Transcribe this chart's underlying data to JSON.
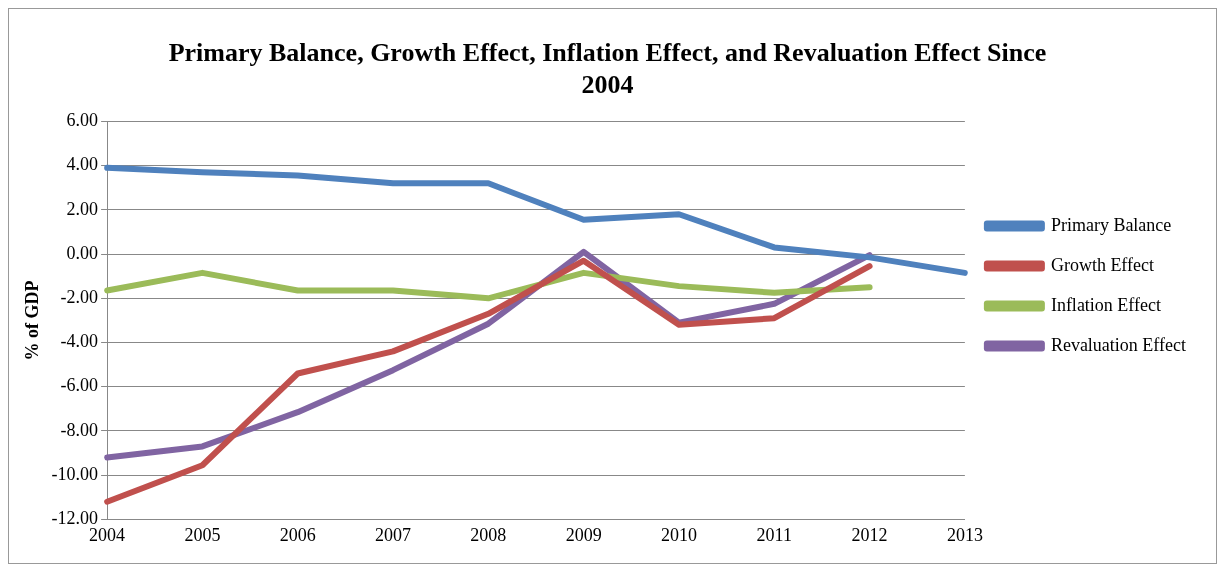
{
  "chart_data": {
    "type": "line",
    "title": "Primary Balance, Growth Effect, Inflation Effect, and Revaluation Effect Since 2004",
    "ylabel": "% of GDP",
    "categories": [
      "2004",
      "2005",
      "2006",
      "2007",
      "2008",
      "2009",
      "2010",
      "2011",
      "2012",
      "2013"
    ],
    "series": [
      {
        "name": "Primary Balance",
        "color": "#4f81bd",
        "values": [
          3.9,
          3.7,
          3.55,
          3.2,
          3.2,
          1.55,
          1.8,
          0.3,
          -0.15,
          -0.85
        ]
      },
      {
        "name": "Growth Effect",
        "color": "#c0504d",
        "values": [
          -11.2,
          -9.55,
          -5.4,
          -4.4,
          -2.7,
          -0.3,
          -3.2,
          -2.9,
          -0.55,
          null
        ]
      },
      {
        "name": "Inflation Effect",
        "color": "#9bbb59",
        "values": [
          -1.65,
          -0.85,
          -1.65,
          -1.65,
          -2.0,
          -0.85,
          -1.45,
          -1.75,
          -1.5,
          null
        ]
      },
      {
        "name": "Revaluation Effect",
        "color": "#8064a2",
        "values": [
          -9.2,
          -8.7,
          -7.15,
          -5.25,
          -3.15,
          0.1,
          -3.1,
          -2.25,
          -0.05,
          null
        ]
      }
    ],
    "ylim": [
      -12,
      6
    ],
    "yticks": [
      {
        "value": -12,
        "label": "-12.00"
      },
      {
        "value": -10,
        "label": "-10.00"
      },
      {
        "value": -8,
        "label": "-8.00"
      },
      {
        "value": -6,
        "label": "-6.00"
      },
      {
        "value": -4,
        "label": "-4.00"
      },
      {
        "value": -2,
        "label": "-2.00"
      },
      {
        "value": 0,
        "label": "0.00"
      },
      {
        "value": 2,
        "label": "2.00"
      },
      {
        "value": 4,
        "label": "4.00"
      },
      {
        "value": 6,
        "label": "6.00"
      }
    ],
    "grid": "y",
    "legend": "right",
    "marker": "none",
    "line_style": "solid"
  }
}
